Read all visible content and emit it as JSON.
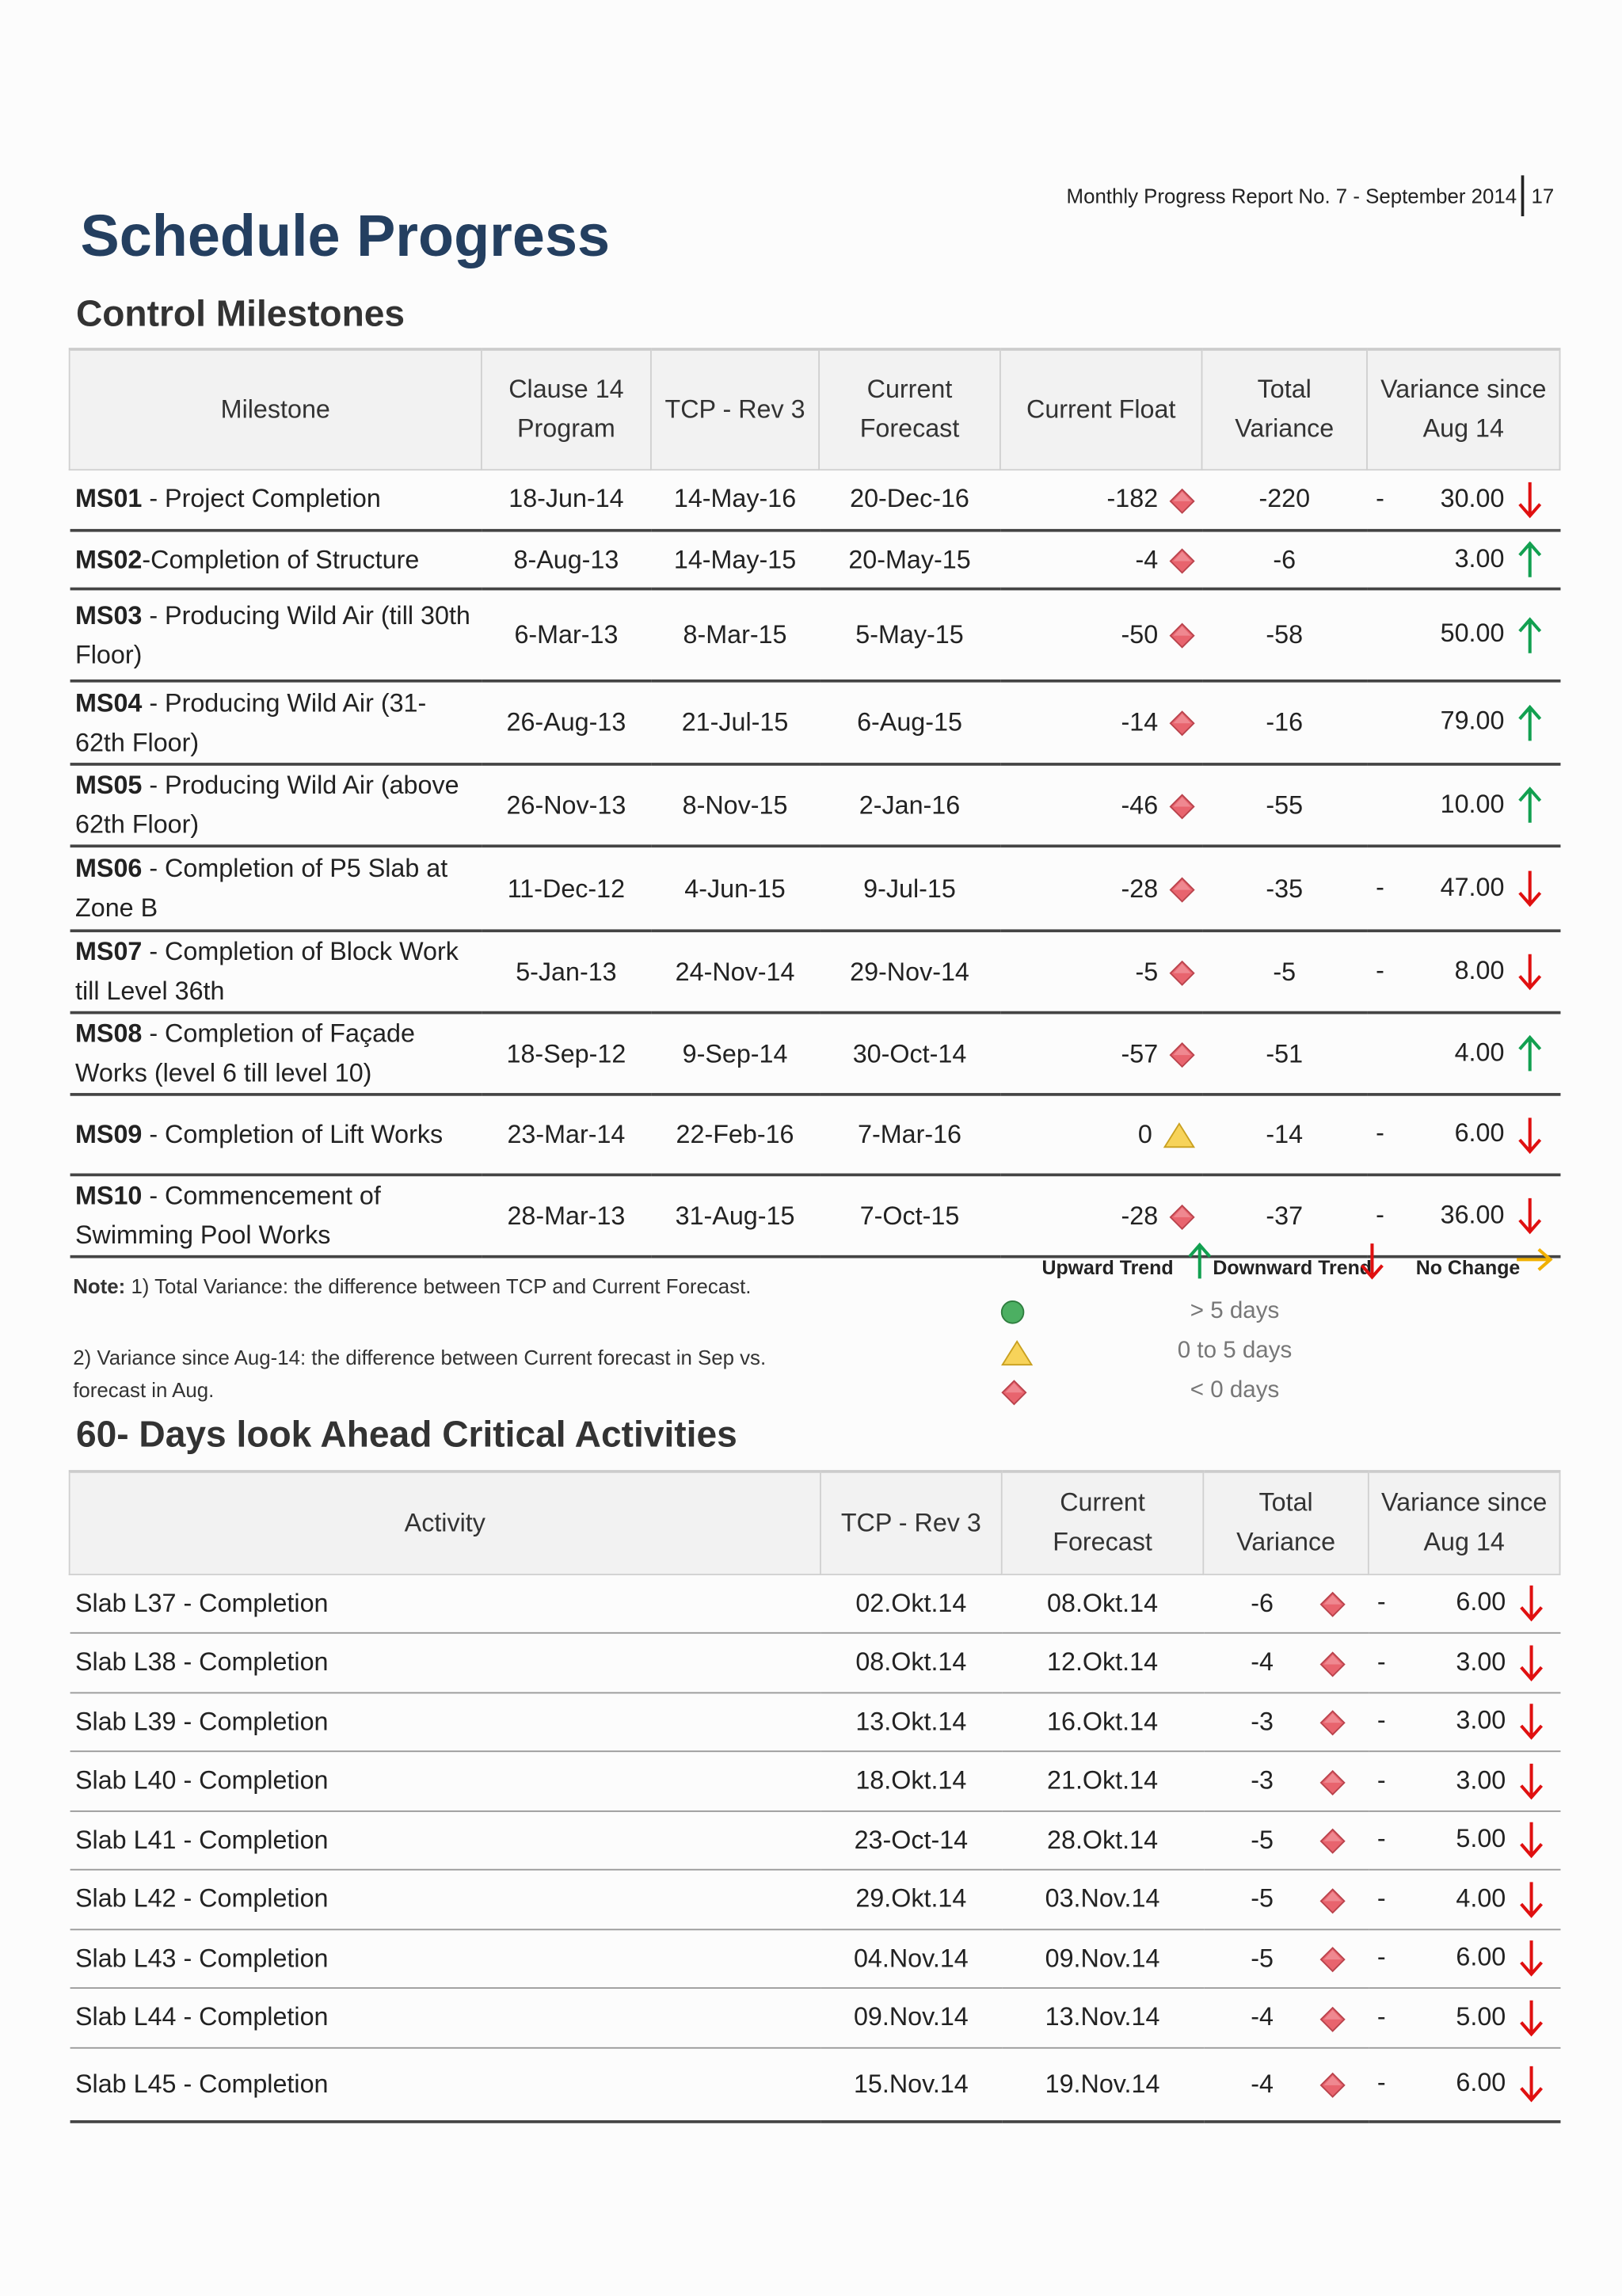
{
  "header": {
    "report": "Monthly Progress Report No. 7 - September 2014",
    "page": "17"
  },
  "title": "Schedule Progress",
  "milestones": {
    "title": "Control Milestones",
    "columns": [
      "Milestone",
      "Clause 14 Program",
      "TCP - Rev 3",
      "Current Forecast",
      "Current Float",
      "Total Variance",
      "Variance since Aug 14"
    ],
    "rows": [
      {
        "code": "MS01",
        "desc": " - Project Completion",
        "clause": "18-Jun-14",
        "tcp": "14-May-16",
        "forecast": "20-Dec-16",
        "float": "-182",
        "status": "diamond",
        "total": "-220",
        "sign": "-",
        "variance": "30.00",
        "trend": "down"
      },
      {
        "code": "MS02",
        "desc": "-Completion of Structure",
        "clause": "8-Aug-13",
        "tcp": "14-May-15",
        "forecast": "20-May-15",
        "float": "-4",
        "status": "diamond",
        "total": "-6",
        "variance": "3.00",
        "trend": "up"
      },
      {
        "code": "MS03",
        "desc": " - Producing Wild Air (till 30th Floor)",
        "clause": "6-Mar-13",
        "tcp": "8-Mar-15",
        "forecast": "5-May-15",
        "float": "-50",
        "status": "diamond",
        "total": "-58",
        "variance": "50.00",
        "trend": "up"
      },
      {
        "code": "MS04",
        "desc": " - Producing Wild Air (31-62th Floor)",
        "clause": "26-Aug-13",
        "tcp": "21-Jul-15",
        "forecast": "6-Aug-15",
        "float": "-14",
        "status": "diamond",
        "total": "-16",
        "variance": "79.00",
        "trend": "up"
      },
      {
        "code": "MS05",
        "desc": " - Producing Wild Air (above 62th Floor)",
        "clause": "26-Nov-13",
        "tcp": "8-Nov-15",
        "forecast": "2-Jan-16",
        "float": "-46",
        "status": "diamond",
        "total": "-55",
        "variance": "10.00",
        "trend": "up"
      },
      {
        "code": "MS06",
        "desc": " - Completion of P5 Slab at Zone B",
        "clause": "11-Dec-12",
        "tcp": "4-Jun-15",
        "forecast": "9-Jul-15",
        "float": "-28",
        "status": "diamond",
        "total": "-35",
        "sign": "-",
        "variance": "47.00",
        "trend": "down"
      },
      {
        "code": "MS07",
        "desc": " - Completion of Block Work till Level 36th",
        "clause": "5-Jan-13",
        "tcp": "24-Nov-14",
        "forecast": "29-Nov-14",
        "float": "-5",
        "status": "diamond",
        "total": "-5",
        "sign": "-",
        "variance": "8.00",
        "trend": "down"
      },
      {
        "code": "MS08",
        "desc": " - Completion of Façade Works (level 6 till level 10)",
        "clause": "18-Sep-12",
        "tcp": "9-Sep-14",
        "forecast": "30-Oct-14",
        "float": "-57",
        "status": "diamond",
        "total": "-51",
        "variance": "4.00",
        "trend": "up"
      },
      {
        "code": "MS09",
        "desc": " - Completion of Lift Works",
        "clause": "23-Mar-14",
        "tcp": "22-Feb-16",
        "forecast": "7-Mar-16",
        "float": "0",
        "status": "triangle",
        "total": "-14",
        "sign": "-",
        "variance": "6.00",
        "trend": "down"
      },
      {
        "code": "MS10",
        "desc": " - Commencement of Swimming Pool Works",
        "clause": "28-Mar-13",
        "tcp": "31-Aug-15",
        "forecast": "7-Oct-15",
        "float": "-28",
        "status": "diamond",
        "total": "-37",
        "sign": "-",
        "variance": "36.00",
        "trend": "down"
      }
    ]
  },
  "notes": {
    "label": "Note:",
    "items": [
      "1) Total Variance: the difference between TCP and Current Forecast.",
      "2) Variance since Aug-14: the difference between Current forecast in Sep vs. forecast in Aug."
    ]
  },
  "legend": {
    "trends": [
      {
        "label": "Upward Trend",
        "icon": "up"
      },
      {
        "label": "Downward Trend",
        "icon": "down"
      },
      {
        "label": "No Change",
        "icon": "right"
      }
    ],
    "status": [
      {
        "label": "> 5 days",
        "icon": "circle"
      },
      {
        "label": "0 to 5 days",
        "icon": "triangle"
      },
      {
        "label": "< 0 days",
        "icon": "diamond"
      }
    ]
  },
  "activities": {
    "title": "60- Days look Ahead Critical Activities",
    "columns": [
      "Activity",
      "TCP - Rev 3",
      "Current Forecast",
      "Total Variance",
      "Variance since Aug 14"
    ],
    "rows": [
      {
        "activity": "Slab L37 - Completion",
        "tcp": "02.Okt.14",
        "forecast": "08.Okt.14",
        "total": "-6",
        "status": "diamond",
        "sign": "-",
        "variance": "6.00",
        "trend": "down"
      },
      {
        "activity": "Slab L38 - Completion",
        "tcp": "08.Okt.14",
        "forecast": "12.Okt.14",
        "total": "-4",
        "status": "diamond",
        "sign": "-",
        "variance": "3.00",
        "trend": "down"
      },
      {
        "activity": "Slab L39 - Completion",
        "tcp": "13.Okt.14",
        "forecast": "16.Okt.14",
        "total": "-3",
        "status": "diamond",
        "sign": "-",
        "variance": "3.00",
        "trend": "down"
      },
      {
        "activity": "Slab L40 - Completion",
        "tcp": "18.Okt.14",
        "forecast": "21.Okt.14",
        "total": "-3",
        "status": "diamond",
        "sign": "-",
        "variance": "3.00",
        "trend": "down"
      },
      {
        "activity": "Slab L41 - Completion",
        "tcp": "23-Oct-14",
        "forecast": "28.Okt.14",
        "total": "-5",
        "status": "diamond",
        "sign": "-",
        "variance": "5.00",
        "trend": "down"
      },
      {
        "activity": "Slab L42 - Completion",
        "tcp": "29.Okt.14",
        "forecast": "03.Nov.14",
        "total": "-5",
        "status": "diamond",
        "sign": "-",
        "variance": "4.00",
        "trend": "down"
      },
      {
        "activity": "Slab L43 - Completion",
        "tcp": "04.Nov.14",
        "forecast": "09.Nov.14",
        "total": "-5",
        "status": "diamond",
        "sign": "-",
        "variance": "6.00",
        "trend": "down"
      },
      {
        "activity": "Slab L44 - Completion",
        "tcp": "09.Nov.14",
        "forecast": "13.Nov.14",
        "total": "-4",
        "status": "diamond",
        "sign": "-",
        "variance": "5.00",
        "trend": "down"
      },
      {
        "activity": "Slab L45 - Completion",
        "tcp": "15.Nov.14",
        "forecast": "19.Nov.14",
        "total": "-4",
        "status": "diamond",
        "sign": "-",
        "variance": "6.00",
        "trend": "down"
      }
    ]
  }
}
